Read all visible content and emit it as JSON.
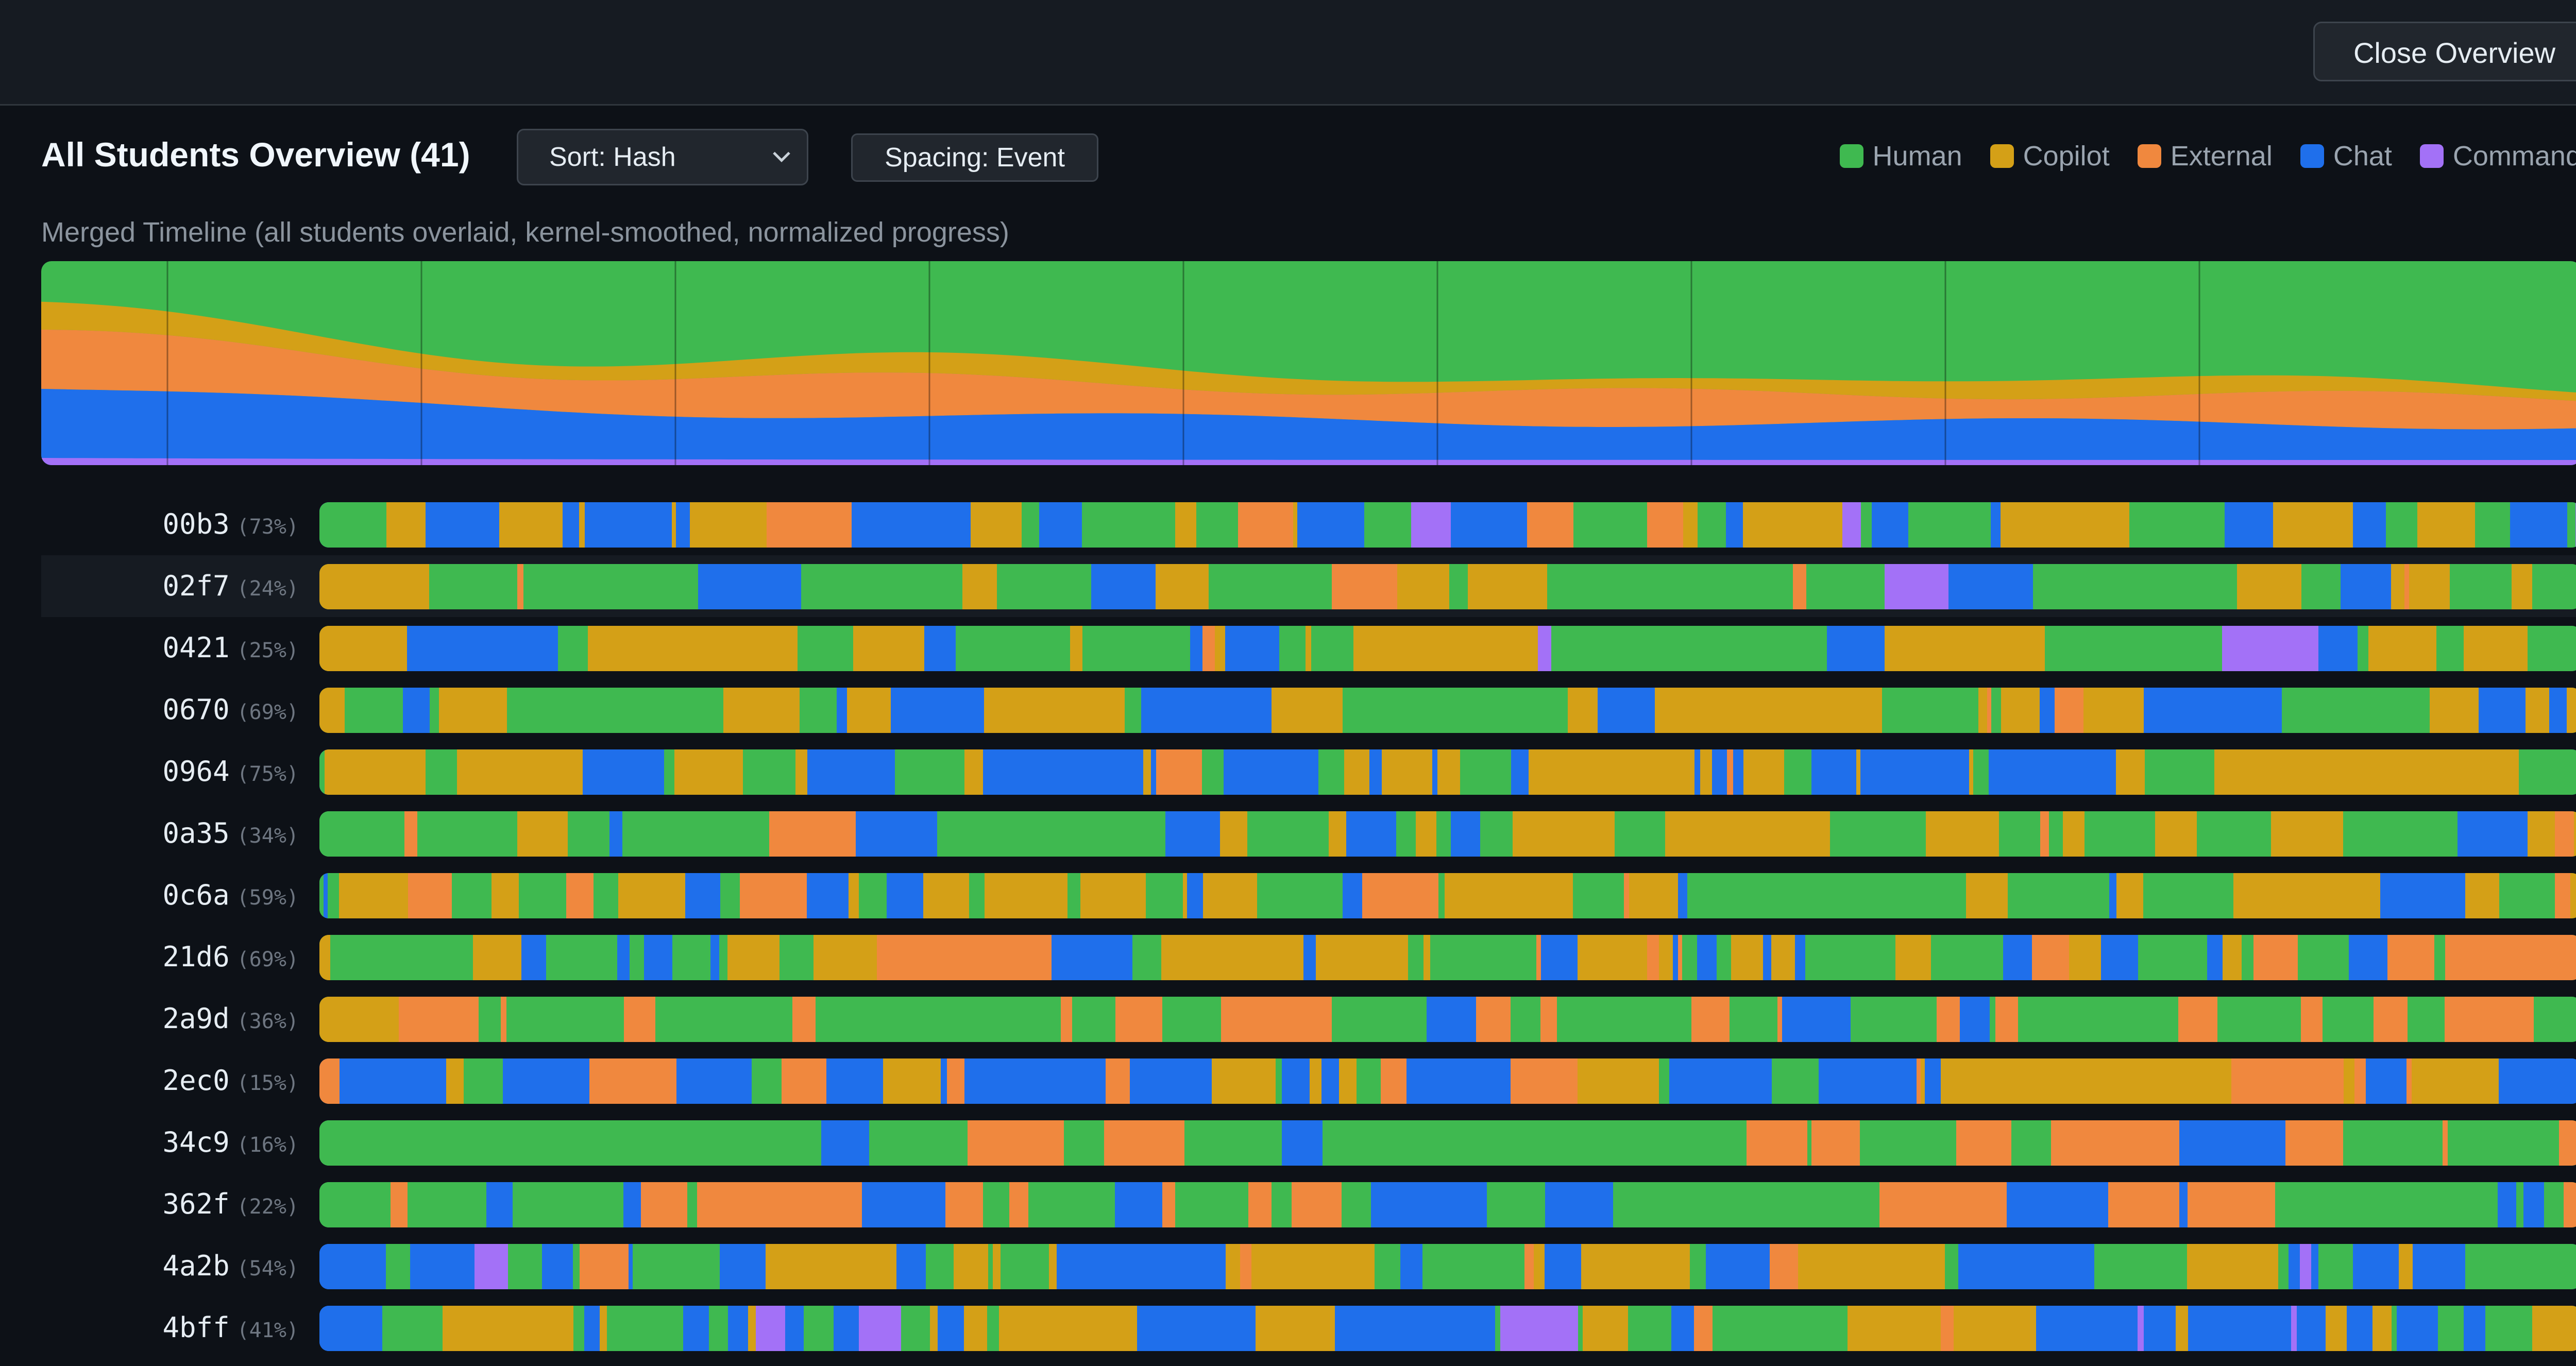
{
  "header": {
    "close_label": "Close Overview"
  },
  "overview": {
    "title": "All Students Overview (41)",
    "sort_label": "Sort: Hash",
    "spacing_label": "Spacing: Event",
    "merged_label": "Merged Timeline (all students overlaid, kernel-smoothed, normalized progress)"
  },
  "legend": [
    {
      "label": "Human",
      "color": "#3fb950"
    },
    {
      "label": "Copilot",
      "color": "#d4a017"
    },
    {
      "label": "External",
      "color": "#f0883e"
    },
    {
      "label": "Chat",
      "color": "#1f6feb"
    },
    {
      "label": "Command",
      "color": "#a371f7"
    }
  ],
  "rows": [
    {
      "id": "00b3",
      "pct": "(73%)",
      "seed": 11,
      "base": "Chat",
      "mix": [
        0.25,
        0.28,
        0.08,
        0.35,
        0.04
      ]
    },
    {
      "id": "02f7",
      "pct": "(24%)",
      "seed": 23,
      "base": "Human",
      "mix": [
        0.55,
        0.28,
        0.05,
        0.1,
        0.02
      ],
      "highlight": true
    },
    {
      "id": "0421",
      "pct": "(25%)",
      "seed": 37,
      "base": "Human",
      "mix": [
        0.5,
        0.3,
        0.06,
        0.12,
        0.02
      ]
    },
    {
      "id": "0670",
      "pct": "(69%)",
      "seed": 41,
      "base": "Human",
      "mix": [
        0.35,
        0.35,
        0.08,
        0.18,
        0.04
      ]
    },
    {
      "id": "0964",
      "pct": "(75%)",
      "seed": 53,
      "base": "Chat",
      "mix": [
        0.25,
        0.35,
        0.05,
        0.33,
        0.02
      ]
    },
    {
      "id": "0a35",
      "pct": "(34%)",
      "seed": 67,
      "base": "Human",
      "mix": [
        0.5,
        0.28,
        0.06,
        0.1,
        0.06
      ]
    },
    {
      "id": "0c6a",
      "pct": "(59%)",
      "seed": 71,
      "base": "Human",
      "mix": [
        0.38,
        0.28,
        0.12,
        0.18,
        0.04
      ]
    },
    {
      "id": "21d6",
      "pct": "(69%)",
      "seed": 83,
      "base": "Human",
      "mix": [
        0.3,
        0.3,
        0.18,
        0.22,
        0.0
      ]
    },
    {
      "id": "2a9d",
      "pct": "(36%)",
      "seed": 97,
      "base": "Human",
      "mix": [
        0.55,
        0.05,
        0.3,
        0.1,
        0.0
      ]
    },
    {
      "id": "2ec0",
      "pct": "(15%)",
      "seed": 101,
      "base": "Chat",
      "mix": [
        0.15,
        0.2,
        0.15,
        0.5,
        0.0
      ]
    },
    {
      "id": "34c9",
      "pct": "(16%)",
      "seed": 113,
      "base": "Human",
      "mix": [
        0.7,
        0.0,
        0.25,
        0.05,
        0.0
      ]
    },
    {
      "id": "362f",
      "pct": "(22%)",
      "seed": 127,
      "base": "Human",
      "mix": [
        0.55,
        0.0,
        0.22,
        0.2,
        0.03
      ]
    },
    {
      "id": "4a2b",
      "pct": "(54%)",
      "seed": 131,
      "base": "Chat",
      "mix": [
        0.3,
        0.3,
        0.08,
        0.3,
        0.02
      ]
    },
    {
      "id": "4bff",
      "pct": "(41%)",
      "seed": 139,
      "base": "Chat",
      "mix": [
        0.3,
        0.25,
        0.05,
        0.35,
        0.05
      ]
    }
  ]
}
